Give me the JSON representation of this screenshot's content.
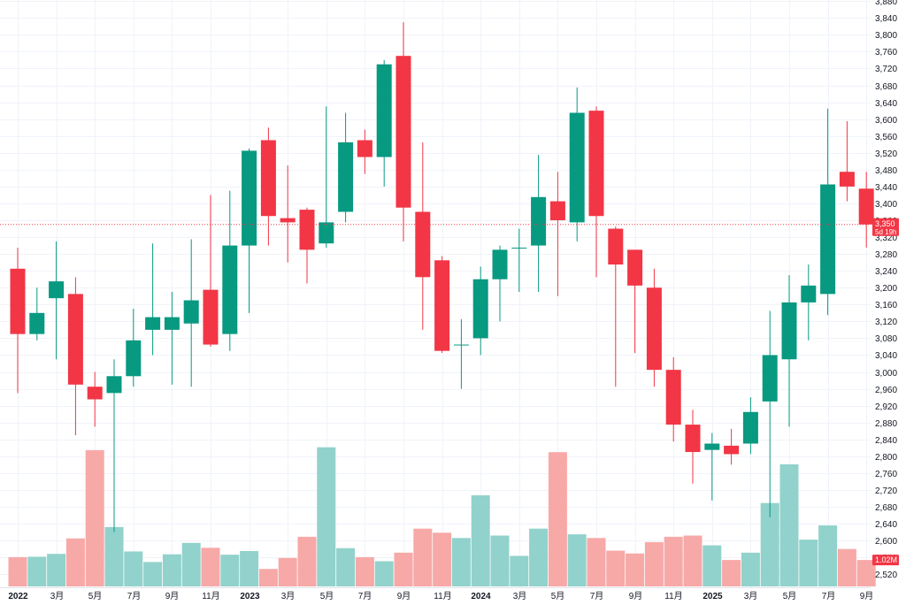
{
  "chart_data": {
    "type": "candlestick",
    "interval": "monthly",
    "colors": {
      "up": "#089981",
      "down": "#f23645",
      "volume_up": "#92d2cc",
      "volume_down": "#f7a9a7",
      "grid": "#f0f3fa",
      "last_price_line": "#f23645"
    },
    "ylim": [
      2490,
      3890
    ],
    "y_ticks": [
      "2,520",
      "2,560",
      "2,600",
      "2,640",
      "2,680",
      "2,720",
      "2,760",
      "2,800",
      "2,840",
      "2,880",
      "2,920",
      "2,960",
      "3,000",
      "3,040",
      "3,080",
      "3,120",
      "3,160",
      "3,200",
      "3,240",
      "3,280",
      "3,320",
      "3,360",
      "3,400",
      "3,440",
      "3,480",
      "3,520",
      "3,560",
      "3,600",
      "3,640",
      "3,680",
      "3,720",
      "3,760",
      "3,800",
      "3,840",
      "3,880"
    ],
    "x_ticks": [
      {
        "label": "2022",
        "index": 0,
        "year": true
      },
      {
        "label": "3月",
        "index": 2
      },
      {
        "label": "5月",
        "index": 4
      },
      {
        "label": "7月",
        "index": 6
      },
      {
        "label": "9月",
        "index": 8
      },
      {
        "label": "11月",
        "index": 10
      },
      {
        "label": "2023",
        "index": 12,
        "year": true
      },
      {
        "label": "3月",
        "index": 14
      },
      {
        "label": "5月",
        "index": 16
      },
      {
        "label": "7月",
        "index": 18
      },
      {
        "label": "9月",
        "index": 20
      },
      {
        "label": "11月",
        "index": 22
      },
      {
        "label": "2024",
        "index": 24,
        "year": true
      },
      {
        "label": "3月",
        "index": 26
      },
      {
        "label": "5月",
        "index": 28
      },
      {
        "label": "7月",
        "index": 30
      },
      {
        "label": "9月",
        "index": 32
      },
      {
        "label": "11月",
        "index": 34
      },
      {
        "label": "2025",
        "index": 36,
        "year": true
      },
      {
        "label": "3月",
        "index": 38
      },
      {
        "label": "5月",
        "index": 40
      },
      {
        "label": "7月",
        "index": 42
      },
      {
        "label": "9月",
        "index": 44
      }
    ],
    "candles": [
      {
        "o": 3245,
        "h": 3295,
        "l": 2950,
        "c": 3090,
        "v": 0.72
      },
      {
        "o": 3090,
        "h": 3200,
        "l": 3075,
        "c": 3140,
        "v": 0.73
      },
      {
        "o": 3175,
        "h": 3310,
        "l": 3030,
        "c": 3215,
        "v": 0.8
      },
      {
        "o": 3185,
        "h": 3225,
        "l": 2850,
        "c": 2970,
        "v": 1.18
      },
      {
        "o": 2965,
        "h": 3000,
        "l": 2870,
        "c": 2935,
        "v": 3.35
      },
      {
        "o": 2950,
        "h": 3030,
        "l": 2620,
        "c": 2990,
        "v": 1.46
      },
      {
        "o": 2990,
        "h": 3150,
        "l": 2965,
        "c": 3075,
        "v": 0.86
      },
      {
        "o": 3100,
        "h": 3305,
        "l": 3040,
        "c": 3130,
        "v": 0.6
      },
      {
        "o": 3100,
        "h": 3190,
        "l": 2970,
        "c": 3130,
        "v": 0.79
      },
      {
        "o": 3115,
        "h": 3315,
        "l": 2965,
        "c": 3170,
        "v": 1.07
      },
      {
        "o": 3195,
        "h": 3420,
        "l": 3060,
        "c": 3065,
        "v": 0.95
      },
      {
        "o": 3090,
        "h": 3430,
        "l": 3050,
        "c": 3300,
        "v": 0.78
      },
      {
        "o": 3300,
        "h": 3530,
        "l": 3140,
        "c": 3525,
        "v": 0.87
      },
      {
        "o": 3550,
        "h": 3580,
        "l": 3300,
        "c": 3370,
        "v": 0.43
      },
      {
        "o": 3365,
        "h": 3490,
        "l": 3260,
        "c": 3355,
        "v": 0.7
      },
      {
        "o": 3385,
        "h": 3390,
        "l": 3210,
        "c": 3290,
        "v": 1.22
      },
      {
        "o": 3305,
        "h": 3630,
        "l": 3295,
        "c": 3355,
        "v": 3.42
      },
      {
        "o": 3380,
        "h": 3615,
        "l": 3355,
        "c": 3545,
        "v": 0.94
      },
      {
        "o": 3550,
        "h": 3575,
        "l": 3470,
        "c": 3510,
        "v": 0.72
      },
      {
        "o": 3510,
        "h": 3740,
        "l": 3440,
        "c": 3730,
        "v": 0.62
      },
      {
        "o": 3750,
        "h": 3830,
        "l": 3310,
        "c": 3390,
        "v": 0.83
      },
      {
        "o": 3380,
        "h": 3545,
        "l": 3100,
        "c": 3225,
        "v": 1.42
      },
      {
        "o": 3265,
        "h": 3275,
        "l": 3045,
        "c": 3050,
        "v": 1.32
      },
      {
        "o": 3065,
        "h": 3125,
        "l": 2960,
        "c": 3065,
        "v": 1.19
      },
      {
        "o": 3080,
        "h": 3250,
        "l": 3040,
        "c": 3220,
        "v": 2.24
      },
      {
        "o": 3220,
        "h": 3300,
        "l": 3120,
        "c": 3290,
        "v": 1.25
      },
      {
        "o": 3295,
        "h": 3340,
        "l": 3190,
        "c": 3295,
        "v": 0.75
      },
      {
        "o": 3300,
        "h": 3515,
        "l": 3190,
        "c": 3415,
        "v": 1.42
      },
      {
        "o": 3405,
        "h": 3475,
        "l": 3180,
        "c": 3360,
        "v": 3.3
      },
      {
        "o": 3355,
        "h": 3675,
        "l": 3310,
        "c": 3615,
        "v": 1.28
      },
      {
        "o": 3620,
        "h": 3630,
        "l": 3225,
        "c": 3370,
        "v": 1.19
      },
      {
        "o": 3340,
        "h": 3345,
        "l": 2965,
        "c": 3255,
        "v": 0.88
      },
      {
        "o": 3290,
        "h": 3290,
        "l": 3045,
        "c": 3205,
        "v": 0.81
      },
      {
        "o": 3200,
        "h": 3245,
        "l": 2965,
        "c": 3005,
        "v": 1.09
      },
      {
        "o": 3005,
        "h": 3035,
        "l": 2835,
        "c": 2875,
        "v": 1.22
      },
      {
        "o": 2875,
        "h": 2910,
        "l": 2735,
        "c": 2810,
        "v": 1.25
      },
      {
        "o": 2815,
        "h": 2855,
        "l": 2695,
        "c": 2830,
        "v": 1.01
      },
      {
        "o": 2825,
        "h": 2865,
        "l": 2780,
        "c": 2805,
        "v": 0.65
      },
      {
        "o": 2830,
        "h": 2940,
        "l": 2805,
        "c": 2905,
        "v": 0.83
      },
      {
        "o": 2930,
        "h": 3145,
        "l": 2655,
        "c": 3040,
        "v": 2.05
      },
      {
        "o": 3030,
        "h": 3230,
        "l": 2870,
        "c": 3165,
        "v": 3.0
      },
      {
        "o": 3165,
        "h": 3255,
        "l": 3075,
        "c": 3205,
        "v": 1.15
      },
      {
        "o": 3185,
        "h": 3625,
        "l": 3135,
        "c": 3445,
        "v": 1.5
      },
      {
        "o": 3475,
        "h": 3595,
        "l": 3405,
        "c": 3440,
        "v": 0.92
      },
      {
        "o": 3435,
        "h": 3475,
        "l": 3295,
        "c": 3350,
        "v": 0.65
      }
    ],
    "last_price": 3350,
    "last_price_label": "3,350",
    "countdown_label": "5d 19h",
    "volume_label": "1.02M"
  }
}
